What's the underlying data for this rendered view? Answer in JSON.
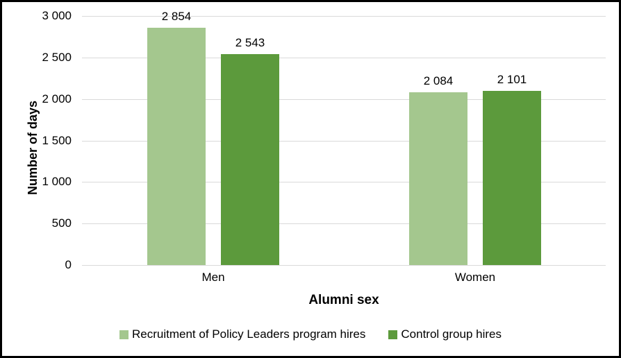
{
  "chart_data": {
    "type": "bar",
    "title": "",
    "xlabel": "Alumni sex",
    "ylabel": "Number of days",
    "categories": [
      "Men",
      "Women"
    ],
    "series": [
      {
        "name": "Recruitment of Policy Leaders program hires",
        "color": "#a4c78e",
        "values": [
          2854,
          2084
        ],
        "labels": [
          "2 854",
          "2 084"
        ]
      },
      {
        "name": "Control group hires",
        "color": "#5c9a3c",
        "values": [
          2543,
          2101
        ],
        "labels": [
          "2 543",
          "2 101"
        ]
      }
    ],
    "ylim": [
      0,
      3000
    ],
    "yticks": [
      {
        "value": 0,
        "label": "0"
      },
      {
        "value": 500,
        "label": "500"
      },
      {
        "value": 1000,
        "label": "1 000"
      },
      {
        "value": 1500,
        "label": "1 500"
      },
      {
        "value": 2000,
        "label": "2 000"
      },
      {
        "value": 2500,
        "label": "2 500"
      },
      {
        "value": 3000,
        "label": "3 000"
      }
    ],
    "grid": true,
    "legend_position": "bottom",
    "colors": {
      "gridline": "#d9d9d9",
      "text": "#000000",
      "background": "#ffffff",
      "frame": "#000000"
    }
  }
}
